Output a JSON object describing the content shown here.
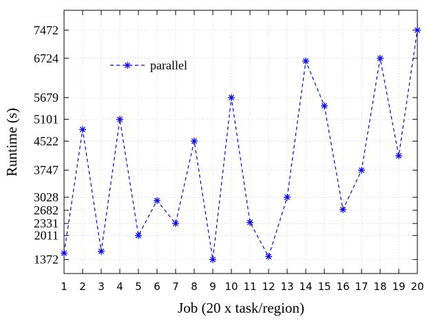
{
  "chart_data": {
    "type": "line",
    "xlabel": "Job (20 x task/region)",
    "ylabel": "Runtime (s)",
    "x": [
      1,
      2,
      3,
      4,
      5,
      6,
      7,
      8,
      9,
      10,
      11,
      12,
      13,
      14,
      15,
      16,
      17,
      18,
      19,
      20
    ],
    "xlim": [
      1,
      20
    ],
    "ylim": [
      1000,
      8000
    ],
    "y_ticks": [
      1372,
      2011,
      2331,
      2682,
      3028,
      3747,
      4522,
      5101,
      5679,
      6724,
      7472
    ],
    "grid": true,
    "legend_position": "top-left",
    "series": [
      {
        "name": "parallel",
        "color": "#0000ff",
        "line_style": "dashed",
        "marker": "asterisk",
        "values": [
          1540,
          4830,
          1590,
          5101,
          2011,
          2940,
          2331,
          4522,
          1372,
          5679,
          2360,
          1450,
          3028,
          6650,
          5460,
          2700,
          3747,
          6724,
          4130,
          7472
        ]
      }
    ]
  }
}
